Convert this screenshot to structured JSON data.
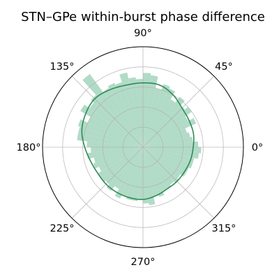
{
  "chart_data": {
    "type": "polar-histogram",
    "title": "STN–GPe within-burst phase difference",
    "theta_unit": "deg",
    "theta_tick_labels": [
      "0°",
      "45°",
      "90°",
      "135°",
      "180°",
      "225°",
      "270°",
      "315°"
    ],
    "r_max": 1.0,
    "r_gridlines": [
      0.2,
      0.4,
      0.6,
      0.8
    ],
    "grid": true,
    "bin_width_deg": 6,
    "bar_color": "#93cdb2",
    "bar_opacity": 0.72,
    "line_color": "#2e8b57",
    "histogram": {
      "bin_centers_deg": [
        3,
        9,
        15,
        21,
        27,
        33,
        39,
        45,
        51,
        57,
        63,
        69,
        75,
        81,
        87,
        93,
        99,
        105,
        111,
        117,
        123,
        129,
        135,
        141,
        147,
        153,
        159,
        165,
        171,
        177,
        183,
        189,
        195,
        201,
        207,
        213,
        219,
        225,
        231,
        237,
        243,
        249,
        255,
        261,
        267,
        273,
        279,
        285,
        291,
        297,
        303,
        309,
        315,
        321,
        327,
        333,
        339,
        345,
        351,
        357
      ],
      "values": [
        0.55,
        0.5,
        0.48,
        0.46,
        0.58,
        0.52,
        0.6,
        0.56,
        0.62,
        0.55,
        0.64,
        0.66,
        0.6,
        0.72,
        0.74,
        0.68,
        0.7,
        0.76,
        0.68,
        0.7,
        0.68,
        0.9,
        0.7,
        0.66,
        0.72,
        0.6,
        0.68,
        0.66,
        0.66,
        0.56,
        0.52,
        0.56,
        0.5,
        0.52,
        0.48,
        0.52,
        0.52,
        0.5,
        0.54,
        0.48,
        0.56,
        0.52,
        0.54,
        0.54,
        0.52,
        0.56,
        0.58,
        0.5,
        0.52,
        0.48,
        0.48,
        0.46,
        0.48,
        0.46,
        0.5,
        0.5,
        0.52,
        0.52,
        0.56,
        0.58
      ]
    },
    "density_curve": {
      "theta_deg": [
        0,
        15,
        30,
        45,
        60,
        75,
        90,
        105,
        120,
        135,
        150,
        165,
        180,
        195,
        210,
        225,
        240,
        255,
        270,
        285,
        300,
        315,
        330,
        345,
        360
      ],
      "r": [
        0.5,
        0.52,
        0.53,
        0.55,
        0.6,
        0.64,
        0.64,
        0.64,
        0.66,
        0.68,
        0.66,
        0.63,
        0.58,
        0.54,
        0.52,
        0.52,
        0.52,
        0.52,
        0.52,
        0.5,
        0.48,
        0.48,
        0.48,
        0.49,
        0.5
      ]
    }
  }
}
